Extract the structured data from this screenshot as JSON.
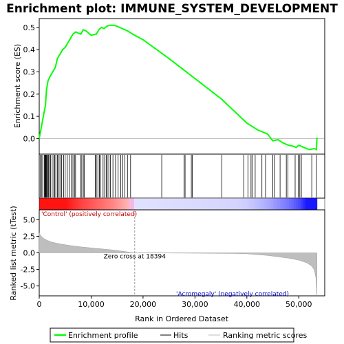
{
  "chart_data": {
    "type": "line",
    "title": "Enrichment plot: IMMUNE_SYSTEM_DEVELOPMENT",
    "xlabel": "Rank in Ordered Dataset",
    "xlim": [
      0,
      55000
    ],
    "x_ticks": [
      0,
      10000,
      20000,
      30000,
      40000,
      50000
    ],
    "x_tick_labels": [
      "0",
      "10,000",
      "20,000",
      "30,000",
      "40,000",
      "50,000"
    ],
    "es_panel": {
      "ylabel": "Enrichment score (ES)",
      "ylim": [
        -0.07,
        0.54
      ],
      "y_ticks": [
        0.0,
        0.1,
        0.2,
        0.3,
        0.4,
        0.5
      ],
      "y_tick_labels": [
        "0.0",
        "0.1",
        "0.2",
        "0.3",
        "0.4",
        "0.5"
      ],
      "series_color": "#00ff00",
      "x": [
        0,
        400,
        800,
        1200,
        1400,
        1700,
        2100,
        2600,
        3100,
        3500,
        4000,
        4500,
        5000,
        5500,
        6000,
        6500,
        7000,
        7500,
        8000,
        8500,
        9000,
        9500,
        10000,
        11000,
        11500,
        12000,
        12500,
        13000,
        13500,
        14500,
        15000,
        16000,
        17000,
        18000,
        20000,
        25000,
        30000,
        35000,
        40000,
        42000,
        44000,
        45000,
        46000,
        47000,
        48000,
        49000,
        49500,
        50000,
        51000,
        52000,
        53000,
        53400,
        53500
      ],
      "y": [
        0.0,
        0.05,
        0.1,
        0.15,
        0.22,
        0.26,
        0.28,
        0.3,
        0.32,
        0.36,
        0.38,
        0.4,
        0.41,
        0.43,
        0.45,
        0.47,
        0.48,
        0.475,
        0.47,
        0.49,
        0.485,
        0.475,
        0.465,
        0.47,
        0.49,
        0.5,
        0.495,
        0.505,
        0.51,
        0.51,
        0.505,
        0.495,
        0.485,
        0.47,
        0.445,
        0.36,
        0.27,
        0.18,
        0.07,
        0.04,
        0.02,
        -0.01,
        -0.005,
        -0.02,
        -0.03,
        -0.035,
        -0.04,
        -0.03,
        -0.04,
        -0.05,
        -0.045,
        -0.05,
        0.005
      ]
    },
    "hits_panel": {
      "hit_ranks": [
        200,
        500,
        700,
        1000,
        1100,
        1200,
        1300,
        1400,
        1500,
        1600,
        1800,
        2000,
        2200,
        2500,
        2800,
        3000,
        3200,
        3500,
        3800,
        4000,
        4300,
        4700,
        5000,
        5400,
        5800,
        6200,
        6500,
        6800,
        7000,
        8000,
        8200,
        8500,
        8700,
        10800,
        11000,
        11300,
        11600,
        11800,
        12300,
        12600,
        12900,
        13100,
        13400,
        13700,
        14200,
        14700,
        15200,
        15700,
        16100,
        16500,
        17000,
        17600,
        23600,
        27900,
        28100,
        29300,
        29500,
        35200,
        39400,
        40200,
        40800,
        41000,
        41600,
        42900,
        43600,
        45000,
        45300,
        46400,
        47600,
        47900,
        49300,
        49900,
        50200,
        50500,
        52500,
        53400
      ]
    },
    "metric_panel": {
      "ylabel": "Ranked list metric (tTest)",
      "ylim": [
        -6.5,
        6.5
      ],
      "y_ticks": [
        -5.0,
        -2.5,
        0.0,
        2.5,
        5.0
      ],
      "y_tick_labels": [
        "-5.0",
        "-2.5",
        "0.0",
        "2.5",
        "5.0"
      ],
      "x": [
        0,
        300,
        800,
        1500,
        2500,
        4000,
        6000,
        8000,
        10000,
        12000,
        14000,
        16000,
        18394,
        25000,
        32000,
        38000,
        40000,
        44000,
        48000,
        50000,
        51500,
        52500,
        53000,
        53300,
        53500
      ],
      "y": [
        3.0,
        2.6,
        2.2,
        1.9,
        1.6,
        1.35,
        1.1,
        0.9,
        0.75,
        0.6,
        0.45,
        0.25,
        0.0,
        -0.03,
        -0.06,
        -0.1,
        -0.15,
        -0.4,
        -0.8,
        -1.1,
        -1.5,
        -2.0,
        -2.6,
        -3.8,
        -6.5
      ],
      "zero_cross_rank": 18394,
      "zero_cross_label": "Zero cross at 18394",
      "positive_label": "'Control' (positively correlated)",
      "negative_label": "'Acromegaly' (negatively correlated)"
    },
    "legend": {
      "placement": "bottom",
      "entries": [
        {
          "label": "Enrichment profile",
          "color": "#00ff00"
        },
        {
          "label": "Hits",
          "color": "#000000"
        },
        {
          "label": "Ranking metric scores",
          "color": "#bebebe"
        }
      ]
    }
  }
}
